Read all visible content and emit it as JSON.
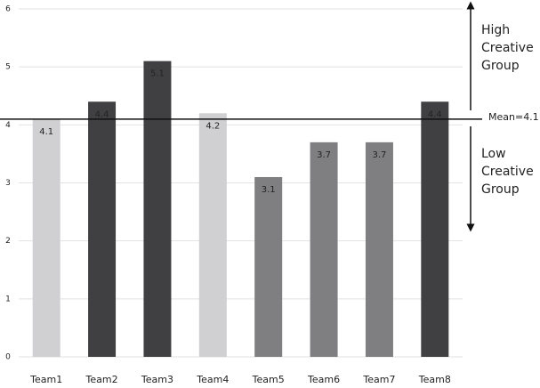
{
  "chart_data": {
    "type": "bar",
    "categories": [
      "Team1",
      "Team2",
      "Team3",
      "Team4",
      "Team5",
      "Team6",
      "Team7",
      "Team8"
    ],
    "values": [
      4.1,
      4.4,
      5.1,
      4.2,
      3.1,
      3.7,
      3.7,
      4.4
    ],
    "colors": [
      "#d0d0d2",
      "#404042",
      "#404042",
      "#d0d0d2",
      "#7f7f81",
      "#7f7f81",
      "#7f7f81",
      "#404042"
    ],
    "label_colors": [
      "#555555",
      "#ffffff",
      "#ffffff",
      "#555555",
      "#ffffff",
      "#ffffff",
      "#ffffff",
      "#ffffff"
    ],
    "ylim": [
      0,
      6
    ],
    "yticks": [
      0,
      1,
      2,
      3,
      4,
      5,
      6
    ],
    "grid": true,
    "mean": {
      "value": 4.1,
      "label": "Mean=4.1"
    },
    "annotations": [
      {
        "position": "above",
        "lines": [
          "High",
          "Creative",
          "Group"
        ]
      },
      {
        "position": "below",
        "lines": [
          "Low",
          "Creative",
          "Group"
        ]
      }
    ]
  }
}
